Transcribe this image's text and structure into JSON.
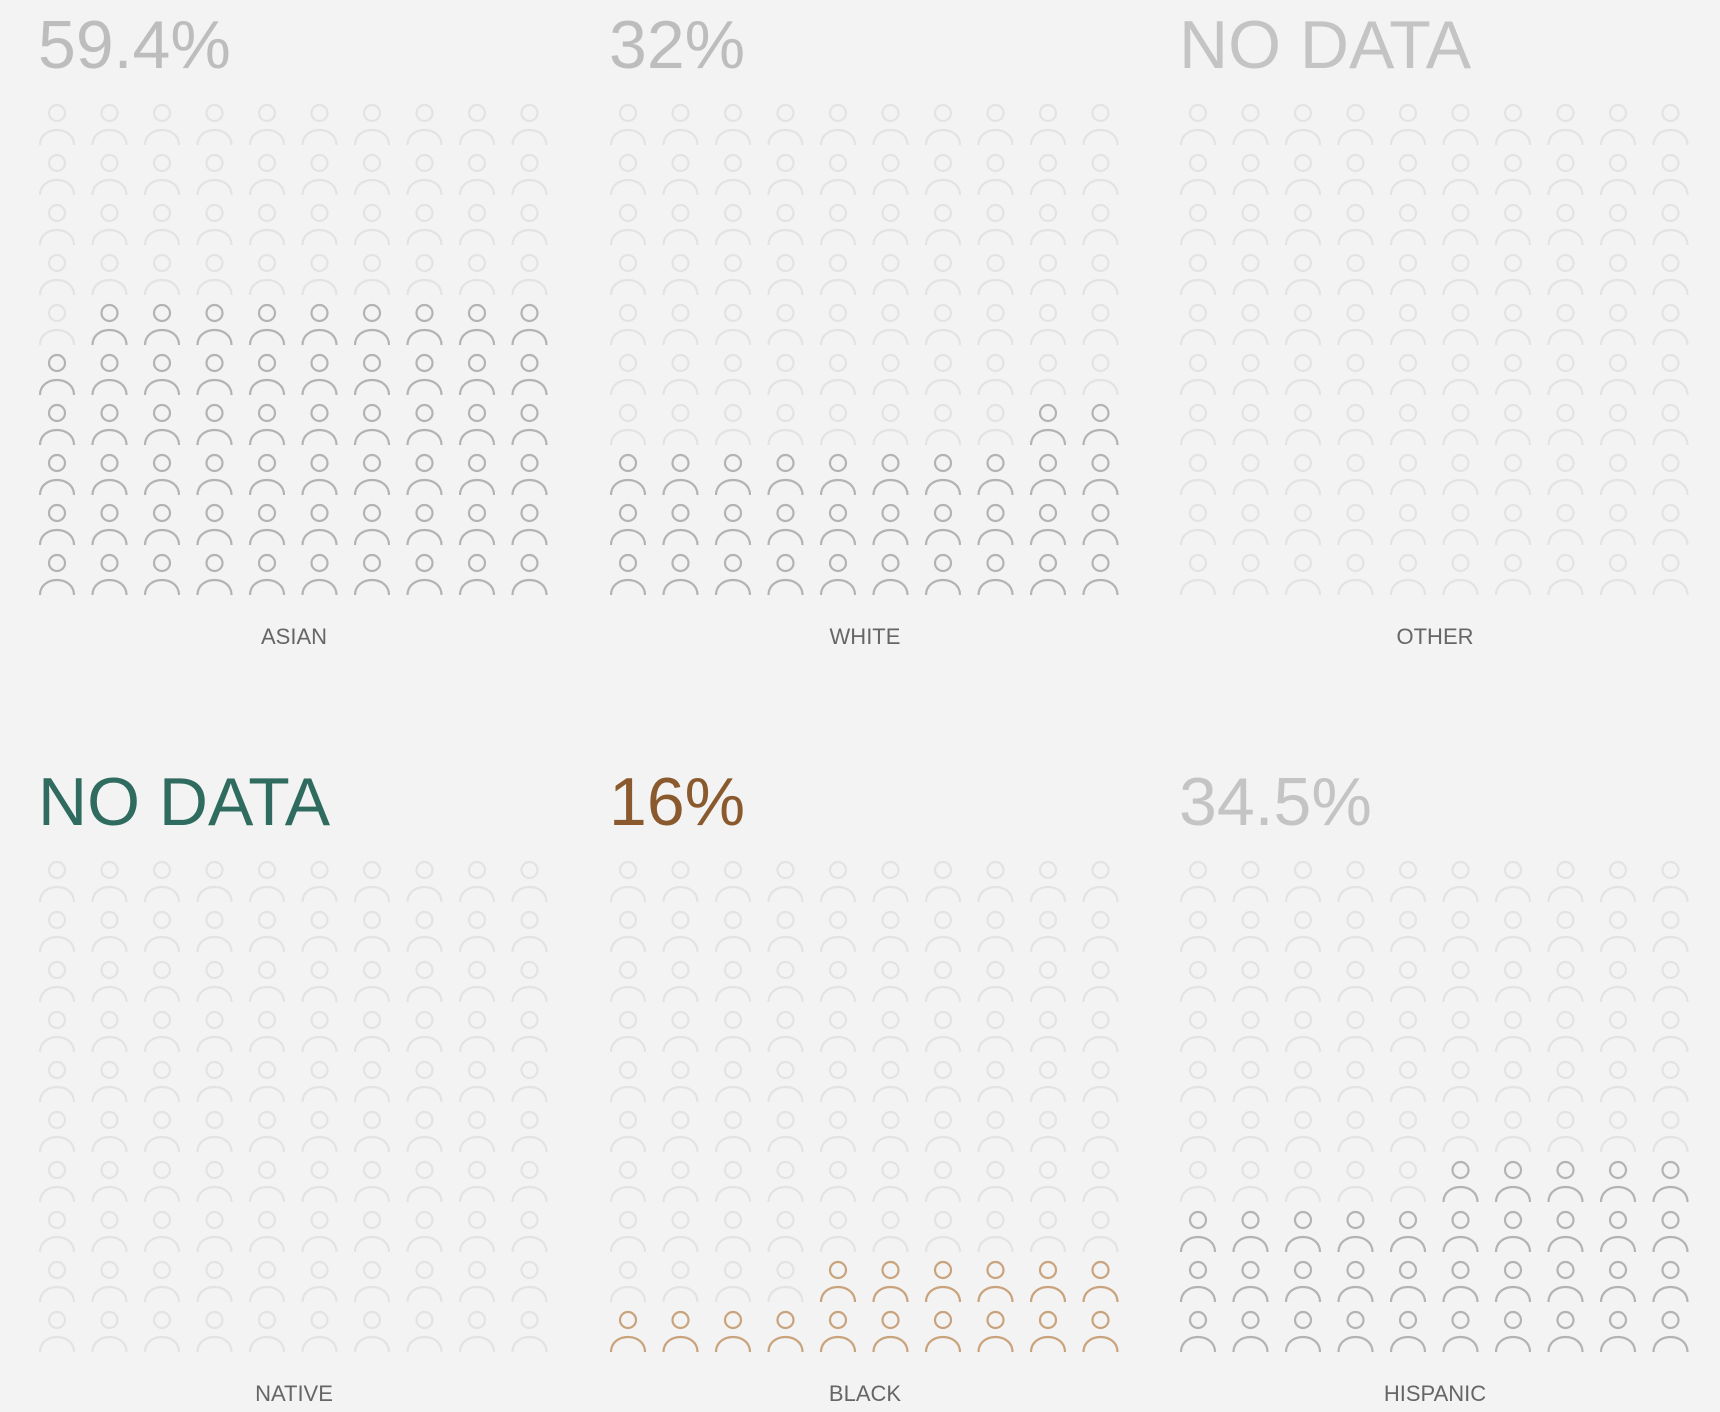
{
  "chart_data": {
    "type": "waffle",
    "categories": [
      "ASIAN",
      "WHITE",
      "OTHER",
      "NATIVE",
      "BLACK",
      "HISPANIC"
    ],
    "values": [
      59.4,
      32,
      null,
      null,
      16,
      34.5
    ],
    "value_labels": [
      "59.4%",
      "32%",
      "NO DATA",
      "NO DATA",
      "16%",
      "34.5%"
    ],
    "title_colors": [
      "#bdbdbd",
      "#bdbdbd",
      "#c4c4c4",
      "#2f6b5f",
      "#8a5a2e",
      "#c4c4c4"
    ],
    "icon_colors": [
      "#b3b3b3",
      "#b3b3b3",
      "#b3b3b3",
      "#b3b3b3",
      "#c9a37c",
      "#b3b3b3"
    ],
    "empty_color": "#e3e3e3"
  }
}
